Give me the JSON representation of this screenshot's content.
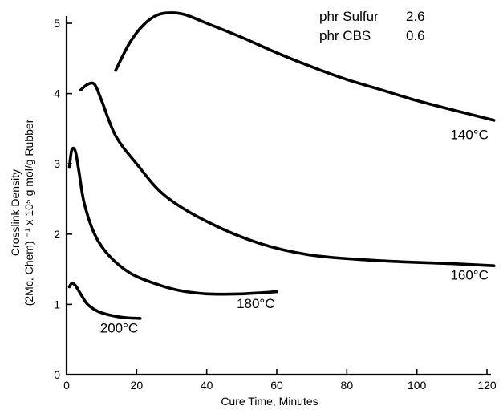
{
  "chart_data": {
    "type": "line",
    "title": "",
    "xlabel": "Cure Time, Minutes",
    "ylabel_line1": "Crosslink Density",
    "ylabel_line2": "(2Mc, Chem) ⁻¹ x 10⁵ g mol/g Rubber",
    "xlim": [
      0,
      125
    ],
    "ylim": [
      0,
      5.2
    ],
    "x_ticks": [
      0,
      20,
      40,
      60,
      80,
      100,
      120
    ],
    "y_ticks": [
      0,
      1,
      2,
      3,
      4,
      5
    ],
    "grid": false,
    "annotations": {
      "line1_label": "phr Sulfur",
      "line1_value": "2.6",
      "line2_label": "phr CBS",
      "line2_value": "0.6"
    },
    "series": [
      {
        "name": "140°C",
        "x": [
          14,
          18,
          22,
          26,
          30,
          34,
          40,
          50,
          60,
          70,
          80,
          90,
          100,
          110,
          122
        ],
        "y": [
          4.33,
          4.72,
          4.98,
          5.12,
          5.15,
          5.12,
          5.0,
          4.8,
          4.58,
          4.38,
          4.2,
          4.05,
          3.9,
          3.77,
          3.62
        ]
      },
      {
        "name": "160°C",
        "x": [
          4,
          6,
          8,
          10,
          14,
          20,
          28,
          40,
          55,
          70,
          90,
          110,
          122
        ],
        "y": [
          4.05,
          4.13,
          4.13,
          3.9,
          3.4,
          3.0,
          2.55,
          2.18,
          1.87,
          1.7,
          1.62,
          1.58,
          1.55
        ]
      },
      {
        "name": "180°C",
        "x": [
          0.8,
          1.5,
          2.5,
          3.5,
          5,
          8,
          12,
          18,
          25,
          32,
          40,
          50,
          60
        ],
        "y": [
          2.95,
          3.2,
          3.18,
          2.9,
          2.45,
          2.0,
          1.7,
          1.45,
          1.3,
          1.2,
          1.15,
          1.15,
          1.18
        ]
      },
      {
        "name": "200°C",
        "x": [
          0.8,
          1.5,
          2.5,
          4,
          6,
          9,
          13,
          17,
          21
        ],
        "y": [
          1.25,
          1.3,
          1.27,
          1.15,
          1.0,
          0.9,
          0.84,
          0.81,
          0.8
        ]
      }
    ],
    "series_label_anchor_x": [
      115,
      115,
      54,
      15
    ],
    "series_label_anchor_y": [
      3.35,
      1.35,
      0.95,
      0.6
    ]
  }
}
